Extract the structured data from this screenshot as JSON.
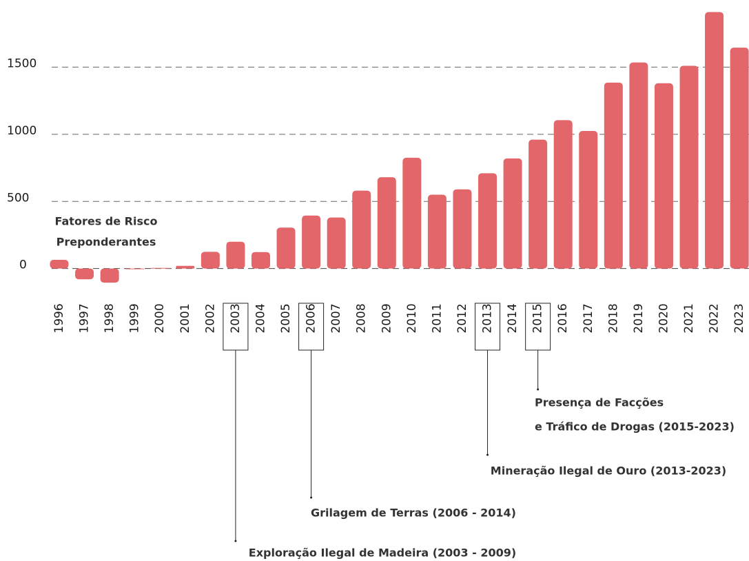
{
  "chart_data": {
    "type": "bar",
    "categories": [
      "1996",
      "1997",
      "1998",
      "1999",
      "2000",
      "2001",
      "2002",
      "2003",
      "2004",
      "2005",
      "2006",
      "2007",
      "2008",
      "2009",
      "2010",
      "2011",
      "2012",
      "2013",
      "2014",
      "2015",
      "2016",
      "2017",
      "2018",
      "2019",
      "2020",
      "2021",
      "2022",
      "2023"
    ],
    "values": [
      65,
      -80,
      -105,
      0,
      5,
      20,
      125,
      200,
      123,
      305,
      395,
      380,
      580,
      680,
      825,
      550,
      590,
      710,
      820,
      960,
      1105,
      1025,
      1385,
      1535,
      1380,
      1510,
      1910,
      1645
    ],
    "color": "#e3666a",
    "ylim": [
      -130,
      2000
    ],
    "yticks": [
      0,
      500,
      1000,
      1500
    ],
    "grid": true,
    "legend_title": [
      "Fatores de Risco",
      "Preponderantes"
    ],
    "annotations": [
      {
        "category": "2003",
        "lines": [
          "Exploração Ilegal de Madeira (2003 - 2009)"
        ]
      },
      {
        "category": "2006",
        "lines": [
          "Grilagem de Terras (2006 - 2014)"
        ]
      },
      {
        "category": "2013",
        "lines": [
          "Mineração Ilegal de Ouro (2013-2023)"
        ]
      },
      {
        "category": "2015",
        "lines": [
          "Presença de Facções",
          "e Tráfico de Drogas (2015-2023)"
        ]
      }
    ]
  }
}
